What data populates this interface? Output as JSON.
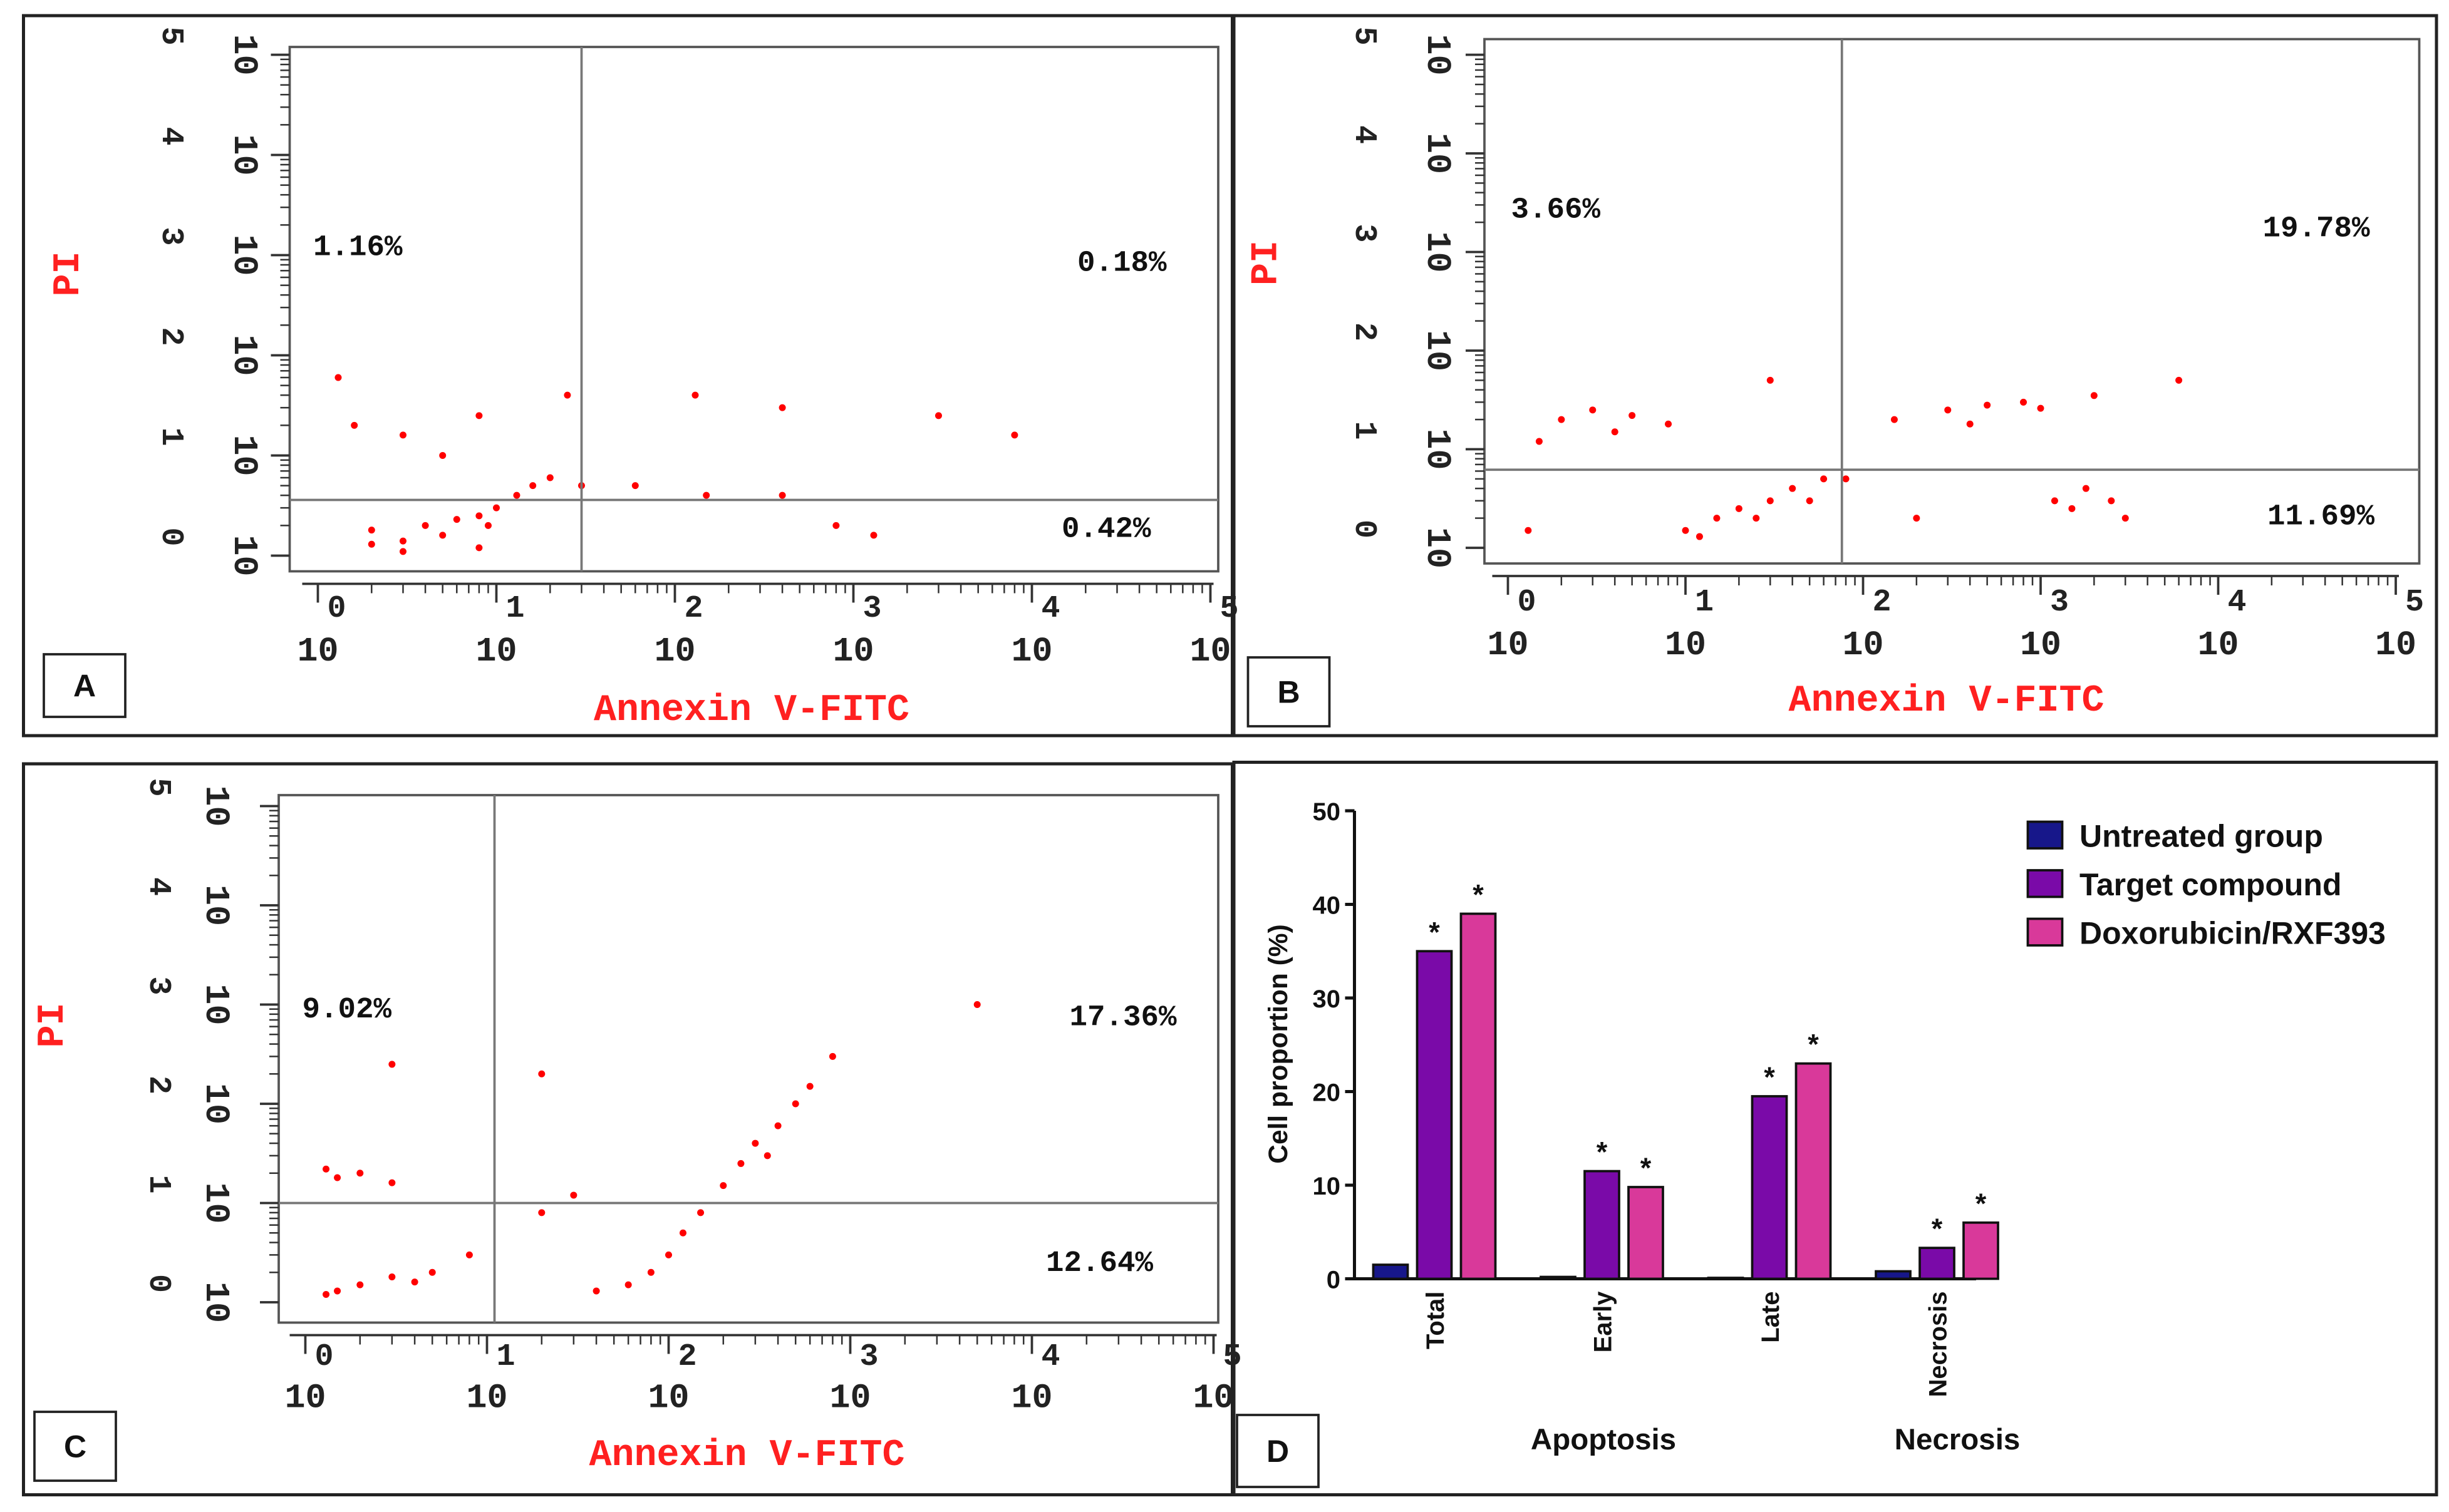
{
  "chart_data": [
    {
      "type": "scatter",
      "panel": "A",
      "xlabel": "Annexin V-FITC",
      "ylabel": "PI",
      "color": "#ff0000",
      "xscale": "log",
      "yscale": "log",
      "xlim": [
        1,
        100000
      ],
      "ylim": [
        1,
        100000
      ],
      "xticks": [
        {
          "value": 1,
          "label": "10",
          "exponent": "0"
        },
        {
          "value": 10,
          "label": "10",
          "exponent": "1"
        },
        {
          "value": 100,
          "label": "10",
          "exponent": "2"
        },
        {
          "value": 1000,
          "label": "10",
          "exponent": "3"
        },
        {
          "value": 10000,
          "label": "10",
          "exponent": "4"
        },
        {
          "value": 100000,
          "label": "10",
          "exponent": "5"
        }
      ],
      "yticks": [
        {
          "value": 1,
          "label": "10",
          "exponent": "0"
        },
        {
          "value": 10,
          "label": "10",
          "exponent": "1"
        },
        {
          "value": 100,
          "label": "10",
          "exponent": "2"
        },
        {
          "value": 1000,
          "label": "10",
          "exponent": "3"
        },
        {
          "value": 10000,
          "label": "10",
          "exponent": "4"
        },
        {
          "value": 100000,
          "label": "10",
          "exponent": "5"
        }
      ],
      "gates": {
        "x": 30,
        "y": 3.6
      },
      "quadrant_labels": [
        {
          "quadrant": "upper-left",
          "label": "1.16%"
        },
        {
          "quadrant": "upper-right",
          "label": "0.18%"
        },
        {
          "quadrant": "lower-right",
          "label": "0.42%"
        }
      ],
      "x": [
        2,
        3,
        4,
        5,
        6,
        8,
        9,
        10,
        13,
        16,
        3,
        2,
        8,
        20,
        30,
        60,
        150,
        400,
        800,
        1300,
        3,
        8,
        1.6,
        25,
        130,
        400,
        3000,
        8000,
        1.3,
        5
      ],
      "y": [
        1.3,
        1.4,
        2,
        1.6,
        2.3,
        2.5,
        2,
        3,
        4,
        5,
        1.1,
        1.8,
        1.2,
        6,
        5,
        5,
        4,
        4,
        2,
        1.6,
        16,
        25,
        20,
        40,
        40,
        30,
        25,
        16,
        60,
        10
      ]
    },
    {
      "type": "scatter",
      "panel": "B",
      "xlabel": "Annexin V-FITC",
      "ylabel": "PI",
      "color": "#ff0000",
      "xscale": "log",
      "yscale": "log",
      "xlim": [
        1,
        100000
      ],
      "ylim": [
        1,
        100000
      ],
      "xticks": [
        {
          "value": 1,
          "label": "10",
          "exponent": "0"
        },
        {
          "value": 10,
          "label": "10",
          "exponent": "1"
        },
        {
          "value": 100,
          "label": "10",
          "exponent": "2"
        },
        {
          "value": 1000,
          "label": "10",
          "exponent": "3"
        },
        {
          "value": 10000,
          "label": "10",
          "exponent": "4"
        },
        {
          "value": 100000,
          "label": "10",
          "exponent": "5"
        }
      ],
      "yticks": [
        {
          "value": 1,
          "label": "10",
          "exponent": "0"
        },
        {
          "value": 10,
          "label": "10",
          "exponent": "1"
        },
        {
          "value": 100,
          "label": "10",
          "exponent": "2"
        },
        {
          "value": 1000,
          "label": "10",
          "exponent": "3"
        },
        {
          "value": 10000,
          "label": "10",
          "exponent": "4"
        },
        {
          "value": 100000,
          "label": "10",
          "exponent": "5"
        }
      ],
      "gates": {
        "x": 76,
        "y": 6.2
      },
      "quadrant_labels": [
        {
          "quadrant": "upper-left",
          "label": "3.66%"
        },
        {
          "quadrant": "upper-right",
          "label": "19.78%"
        },
        {
          "quadrant": "lower-right",
          "label": "11.69%"
        }
      ],
      "x": [
        10,
        15,
        20,
        30,
        40,
        60,
        25,
        12,
        50,
        80,
        2,
        3,
        5,
        8,
        4,
        1.5,
        150,
        300,
        500,
        800,
        1000,
        2000,
        400,
        1200,
        1800,
        2500,
        1500,
        3000,
        200,
        6000,
        30,
        1.3
      ],
      "y": [
        1.5,
        2,
        2.5,
        3,
        4,
        5,
        2,
        1.3,
        3,
        5,
        20,
        25,
        22,
        18,
        15,
        12,
        20,
        25,
        28,
        30,
        26,
        35,
        18,
        3,
        4,
        3,
        2.5,
        2,
        2,
        50,
        50,
        1.5
      ]
    },
    {
      "type": "scatter",
      "panel": "C",
      "xlabel": "Annexin V-FITC",
      "ylabel": "PI",
      "color": "#ff0000",
      "xscale": "log",
      "yscale": "log",
      "xlim": [
        1,
        100000
      ],
      "ylim": [
        1,
        100000
      ],
      "xticks": [
        {
          "value": 1,
          "label": "10",
          "exponent": "0"
        },
        {
          "value": 10,
          "label": "10",
          "exponent": "1"
        },
        {
          "value": 100,
          "label": "10",
          "exponent": "2"
        },
        {
          "value": 1000,
          "label": "10",
          "exponent": "3"
        },
        {
          "value": 10000,
          "label": "10",
          "exponent": "4"
        },
        {
          "value": 100000,
          "label": "10",
          "exponent": "5"
        }
      ],
      "yticks": [
        {
          "value": 1,
          "label": "10",
          "exponent": "0"
        },
        {
          "value": 10,
          "label": "10",
          "exponent": "1"
        },
        {
          "value": 100,
          "label": "10",
          "exponent": "2"
        },
        {
          "value": 1000,
          "label": "10",
          "exponent": "3"
        },
        {
          "value": 10000,
          "label": "10",
          "exponent": "4"
        },
        {
          "value": 100000,
          "label": "10",
          "exponent": "5"
        }
      ],
      "gates": {
        "x": 11,
        "y": 10
      },
      "quadrant_labels": [
        {
          "quadrant": "upper-left",
          "label": "9.02%"
        },
        {
          "quadrant": "upper-right",
          "label": "17.36%"
        },
        {
          "quadrant": "lower-right",
          "label": "12.64%"
        }
      ],
      "x": [
        1.5,
        2,
        3,
        5,
        8,
        4,
        1.3,
        1.5,
        2,
        3,
        1.3,
        40,
        60,
        80,
        100,
        120,
        150,
        200,
        250,
        300,
        400,
        500,
        600,
        350,
        20,
        30,
        800,
        5000,
        3,
        20
      ],
      "y": [
        1.3,
        1.5,
        1.8,
        2,
        3,
        1.6,
        1.2,
        18,
        20,
        16,
        22,
        1.3,
        1.5,
        2,
        3,
        5,
        8,
        15,
        25,
        40,
        60,
        100,
        150,
        30,
        8,
        12,
        300,
        1000,
        250,
        200
      ]
    },
    {
      "type": "bar",
      "panel": "D",
      "ylabel": "Cell proportion (%)",
      "categories": [
        "Total",
        "Early",
        "Late",
        "Necrosis"
      ],
      "group_labels": [
        "Apoptosis",
        "Necrosis"
      ],
      "ylim": [
        0,
        50
      ],
      "yticks": [
        0,
        10,
        20,
        30,
        40,
        50
      ],
      "legend": "upper-right",
      "series": [
        {
          "name": "Untreated group",
          "color": "#17178a",
          "values": [
            1.5,
            0.2,
            0.1,
            0.8
          ]
        },
        {
          "name": "Target compound",
          "color": "#7a0aa8",
          "values": [
            35,
            11.5,
            19.5,
            3.3
          ],
          "labels": [
            "*",
            "*",
            "*",
            "*"
          ]
        },
        {
          "name": "Doxorubicin/RXF393",
          "color": "#d9399a",
          "values": [
            39,
            9.8,
            23,
            6
          ],
          "labels": [
            "*",
            "*",
            "*",
            "*"
          ]
        }
      ]
    }
  ]
}
